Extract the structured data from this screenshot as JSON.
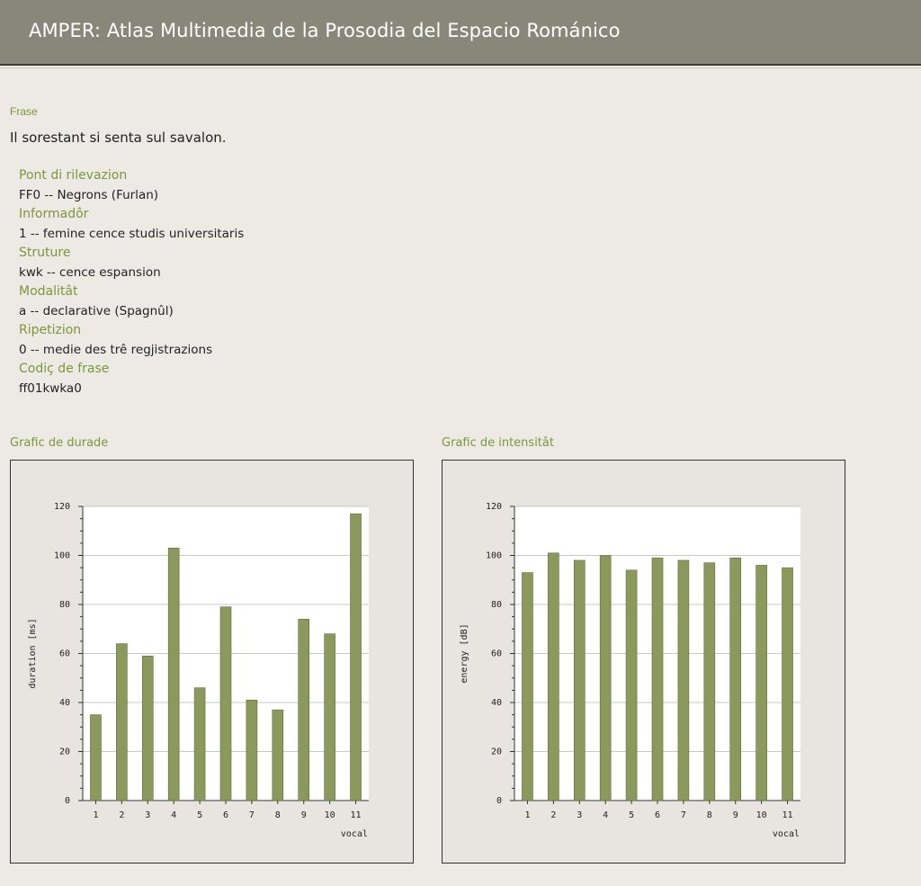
{
  "header": {
    "title": "AMPER: Atlas Multimedia de la Prosodia del Espacio Románico"
  },
  "frase": {
    "label": "Frase",
    "text": "Il sorestant si senta sul savalon."
  },
  "meta": [
    {
      "label": "Pont di rilevazion",
      "value": "FF0 -- Negrons (Furlan)"
    },
    {
      "label": "Informadôr",
      "value": "1 -- femine cence studis universitaris"
    },
    {
      "label": "Struture",
      "value": "kwk -- cence espansion"
    },
    {
      "label": "Modalitât",
      "value": "a -- declarative (Spagnûl)"
    },
    {
      "label": "Ripetizion",
      "value": "0 -- medie des trê regjistrazions"
    },
    {
      "label": "Codiç de frase",
      "value": "ff01kwka0"
    }
  ],
  "colors": {
    "accent": "#7d9638",
    "bar": "#8b9a5c",
    "header": "#898779"
  },
  "chart_data": [
    {
      "type": "bar",
      "title": "Grafic de durade",
      "categories": [
        "1",
        "2",
        "3",
        "4",
        "5",
        "6",
        "7",
        "8",
        "9",
        "10",
        "11"
      ],
      "values": [
        35,
        64,
        59,
        103,
        46,
        79,
        41,
        37,
        74,
        68,
        117
      ],
      "xlabel": "vocal",
      "ylabel": "duration [ms]",
      "ylim": [
        0,
        120
      ],
      "yticks": [
        "0",
        "20",
        "40",
        "60",
        "80",
        "100",
        "120"
      ],
      "grid": true
    },
    {
      "type": "bar",
      "title": "Grafic de intensitât",
      "categories": [
        "1",
        "2",
        "3",
        "4",
        "5",
        "6",
        "7",
        "8",
        "9",
        "10",
        "11"
      ],
      "values": [
        93,
        101,
        98,
        100,
        94,
        99,
        98,
        97,
        99,
        96,
        95
      ],
      "xlabel": "vocal",
      "ylabel": "energy [dB]",
      "ylim": [
        0,
        120
      ],
      "yticks": [
        "0",
        "20",
        "40",
        "60",
        "80",
        "100",
        "120"
      ],
      "grid": true
    }
  ]
}
